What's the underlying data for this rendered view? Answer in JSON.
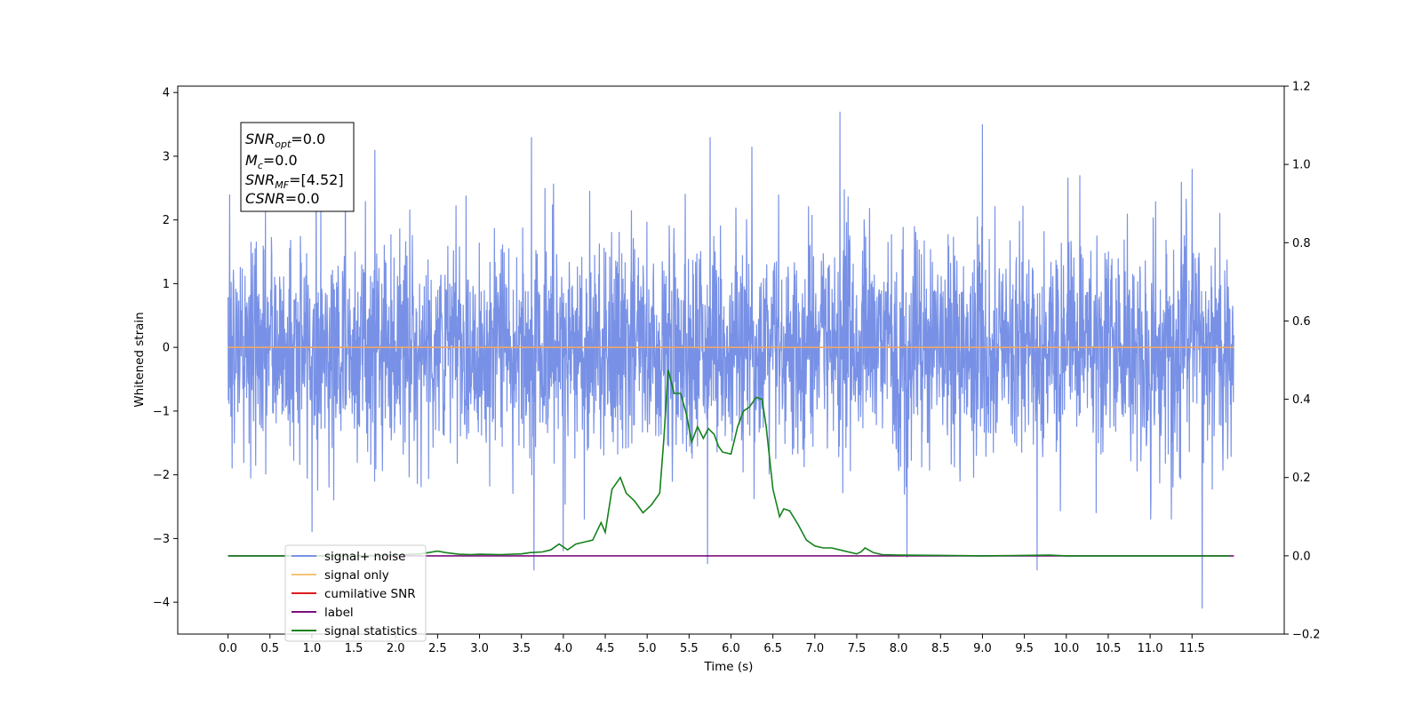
{
  "chart_data": {
    "type": "line",
    "xlabel": "Time (s)",
    "ylabel": "Whitened strain",
    "xlim": [
      -0.6,
      12.6
    ],
    "ylim": [
      -4.5,
      4.1
    ],
    "y2lim": [
      -0.2,
      1.2
    ],
    "x_ticks": [
      "0.0",
      "0.5",
      "1.0",
      "1.5",
      "2.0",
      "2.5",
      "3.0",
      "3.5",
      "4.0",
      "4.5",
      "5.0",
      "5.5",
      "6.0",
      "6.5",
      "7.0",
      "7.5",
      "8.0",
      "8.5",
      "9.0",
      "9.5",
      "10.0",
      "10.5",
      "11.0",
      "11.5"
    ],
    "y_ticks": [
      "4",
      "3",
      "2",
      "1",
      "0",
      "−1",
      "−2",
      "−3",
      "−4"
    ],
    "y2_ticks": [
      "1.2",
      "1.0",
      "0.8",
      "0.6",
      "0.4",
      "0.2",
      "0.0",
      "−0.2"
    ],
    "annotation": {
      "snr_opt": {
        "sym": "SNR",
        "sub": "opt",
        "val": "=0.0"
      },
      "mc": {
        "sym": "M",
        "sub": "c",
        "val": "=0.0"
      },
      "snr_mf": {
        "sym": "SNR",
        "sub": "MF",
        "val": "=[4.52]"
      },
      "csnr": {
        "sym": "CSNR",
        "sub": "",
        "val": "=0.0"
      }
    },
    "legend": {
      "placement": "lower-left",
      "entries": [
        "signal+ noise",
        "signal only",
        "cumilative SNR",
        "label",
        "signal statistics"
      ]
    },
    "noise_series": {
      "name": "signal+ noise",
      "axis": "left",
      "x_start": 0.0,
      "x_end": 12.0,
      "stddev": 0.85,
      "peaks": [
        [
          0.02,
          2.4
        ],
        [
          0.05,
          -1.9
        ],
        [
          1.0,
          -2.9
        ],
        [
          1.4,
          3.0
        ],
        [
          1.75,
          3.1
        ],
        [
          3.62,
          3.3
        ],
        [
          3.65,
          -3.5
        ],
        [
          4.0,
          -3.2
        ],
        [
          5.72,
          -3.4
        ],
        [
          5.75,
          3.3
        ],
        [
          6.25,
          3.15
        ],
        [
          7.3,
          3.7
        ],
        [
          8.1,
          -3.3
        ],
        [
          9.0,
          3.5
        ],
        [
          9.65,
          -3.5
        ],
        [
          11.5,
          2.8
        ],
        [
          11.62,
          -4.1
        ]
      ]
    },
    "series": [
      {
        "name": "signal only",
        "axis": "left",
        "x": [
          0.0,
          12.0
        ],
        "y": [
          0.0,
          0.0
        ]
      },
      {
        "name": "label",
        "axis": "right",
        "x": [
          0.0,
          12.0
        ],
        "y": [
          0.0,
          0.0
        ]
      },
      {
        "name": "signal statistics",
        "axis": "right",
        "x": [
          0.0,
          0.5,
          1.0,
          1.5,
          2.0,
          2.3,
          2.5,
          2.6,
          2.75,
          2.9,
          3.0,
          3.25,
          3.5,
          3.6,
          3.75,
          3.85,
          3.95,
          4.05,
          4.15,
          4.25,
          4.35,
          4.45,
          4.5,
          4.58,
          4.68,
          4.75,
          4.85,
          4.95,
          5.05,
          5.15,
          5.2,
          5.25,
          5.32,
          5.4,
          5.47,
          5.53,
          5.6,
          5.67,
          5.73,
          5.8,
          5.85,
          5.9,
          6.0,
          6.08,
          6.15,
          6.22,
          6.3,
          6.37,
          6.42,
          6.5,
          6.58,
          6.63,
          6.7,
          6.8,
          6.9,
          7.0,
          7.1,
          7.2,
          7.3,
          7.4,
          7.5,
          7.55,
          7.6,
          7.7,
          7.8,
          8.0,
          8.5,
          9.0,
          9.5,
          9.8,
          10.0,
          11.0,
          11.95
        ],
        "y": [
          0.0,
          0.0,
          0.0,
          0.0,
          0.002,
          0.005,
          0.012,
          0.008,
          0.004,
          0.003,
          0.004,
          0.003,
          0.005,
          0.008,
          0.01,
          0.015,
          0.03,
          0.015,
          0.03,
          0.035,
          0.04,
          0.085,
          0.06,
          0.17,
          0.2,
          0.16,
          0.14,
          0.11,
          0.13,
          0.16,
          0.3,
          0.475,
          0.415,
          0.415,
          0.36,
          0.29,
          0.33,
          0.3,
          0.325,
          0.31,
          0.28,
          0.265,
          0.26,
          0.33,
          0.37,
          0.38,
          0.405,
          0.4,
          0.33,
          0.17,
          0.1,
          0.12,
          0.115,
          0.08,
          0.04,
          0.025,
          0.02,
          0.02,
          0.015,
          0.01,
          0.005,
          0.01,
          0.02,
          0.008,
          0.003,
          0.002,
          0.001,
          0.0,
          0.001,
          0.002,
          0.0,
          0.0,
          0.0
        ]
      }
    ],
    "colors": {
      "noise": "#7891e6",
      "signal": "#f2a766",
      "cumsnr": "#e01b1b",
      "label": "#7d0f7d",
      "stats": "#14821c",
      "legend_signal": "#f7c378"
    }
  }
}
